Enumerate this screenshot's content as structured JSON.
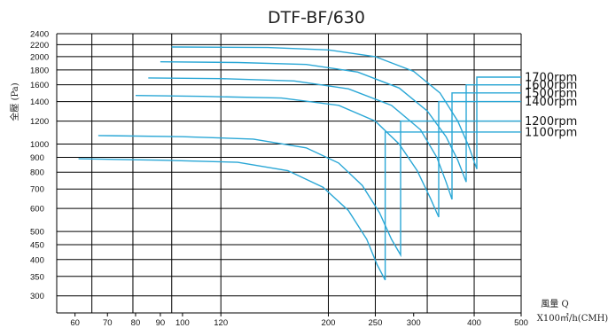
{
  "chart_data": {
    "type": "line",
    "title": "DTF-BF/630",
    "ylabel": "全壓 (Pa)",
    "xlabel_line1": "風量 Q",
    "xlabel_line2": "X100㎥/h(CMH)",
    "x_scale": "log",
    "y_scale": "log",
    "xlim": [
      55,
      500
    ],
    "ylim": [
      285,
      2400
    ],
    "x_ticks": [
      60,
      70,
      80,
      90,
      100,
      120,
      200,
      250,
      300,
      400,
      500
    ],
    "y_ticks": [
      300,
      350,
      400,
      450,
      500,
      600,
      700,
      800,
      900,
      1000,
      1200,
      1400,
      1600,
      1800,
      2000,
      2200,
      2400
    ],
    "x_grid": [
      65,
      79,
      95,
      120,
      200,
      250,
      320,
      400,
      500
    ],
    "grid": true,
    "line_color": "#2aa7d6",
    "series": [
      {
        "name": "1700rpm",
        "x": [
          95,
          150,
          200,
          250,
          300,
          340,
          370,
          390,
          405
        ],
        "y": [
          2160,
          2150,
          2110,
          2000,
          1780,
          1500,
          1200,
          980,
          820
        ]
      },
      {
        "name": "1600rpm",
        "x": [
          90,
          130,
          180,
          230,
          280,
          320,
          350,
          370,
          385
        ],
        "y": [
          1920,
          1910,
          1880,
          1770,
          1560,
          1300,
          1060,
          880,
          740
        ]
      },
      {
        "name": "1500rpm",
        "x": [
          85,
          120,
          170,
          220,
          270,
          310,
          335,
          350,
          360
        ],
        "y": [
          1690,
          1680,
          1650,
          1550,
          1360,
          1120,
          900,
          740,
          645
        ]
      },
      {
        "name": "1400rpm",
        "x": [
          80,
          110,
          160,
          210,
          250,
          280,
          305,
          325,
          338
        ],
        "y": [
          1470,
          1460,
          1440,
          1360,
          1200,
          1000,
          810,
          650,
          560
        ]
      },
      {
        "name": "1200rpm",
        "x": [
          67,
          100,
          140,
          180,
          210,
          235,
          255,
          270,
          282
        ],
        "y": [
          1070,
          1060,
          1040,
          970,
          860,
          720,
          580,
          470,
          415
        ]
      },
      {
        "name": "1100rpm",
        "x": [
          61,
          90,
          130,
          165,
          195,
          220,
          240,
          252,
          262
        ],
        "y": [
          890,
          880,
          865,
          810,
          710,
          590,
          470,
          385,
          340
        ]
      }
    ],
    "rpm_label_y": [
      1700,
      1600,
      1500,
      1400,
      1200,
      1100
    ]
  }
}
